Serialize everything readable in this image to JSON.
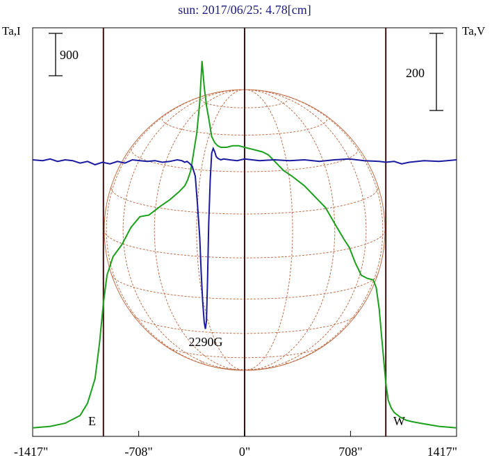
{
  "chart_data": {
    "type": "line",
    "title": "sun: 2017/06/25: 4.78[cm]",
    "ylabel_left": "Ta,I",
    "ylabel_right": "Ta,V",
    "scale_left": "900",
    "scale_right": "200",
    "x_ticks": [
      "-1417\"",
      "-708\"",
      "0\"",
      "708\"",
      "1417\""
    ],
    "x_tick_values": [
      -1417,
      -708,
      0,
      708,
      1417
    ],
    "xlim": [
      -1417,
      1417
    ],
    "limb_labels": {
      "east": "E",
      "west": "W"
    },
    "limb_positions": [
      -944,
      944
    ],
    "annotation": {
      "text": "2290G",
      "x": -250
    },
    "grid": false,
    "series": [
      {
        "color": "#1aa01a",
        "x": [
          -1417,
          -1300,
          -1200,
          -1100,
          -1050,
          -1000,
          -970,
          -944,
          -920,
          -880,
          -820,
          -760,
          -700,
          -640,
          -600,
          -560,
          -500,
          -440,
          -400,
          -380,
          -360,
          -340,
          -320,
          -300,
          -285,
          -270,
          -255,
          -240,
          -220,
          -200,
          -180,
          -160,
          -120,
          -80,
          -40,
          0,
          40,
          80,
          120,
          160,
          200,
          260,
          320,
          400,
          480,
          540,
          600,
          660,
          700,
          740,
          780,
          820,
          860,
          880,
          900,
          920,
          944,
          960,
          980,
          1000,
          1040,
          1080,
          1120,
          1200,
          1300,
          1417
        ],
        "values": [
          5,
          10,
          20,
          45,
          85,
          165,
          280,
          410,
          500,
          560,
          600,
          655,
          690,
          695,
          710,
          725,
          745,
          770,
          790,
          810,
          840,
          900,
          960,
          1060,
          1195,
          1110,
          1050,
          1010,
          950,
          930,
          920,
          915,
          915,
          920,
          920,
          915,
          910,
          905,
          900,
          890,
          870,
          840,
          820,
          790,
          750,
          720,
          670,
          620,
          590,
          540,
          500,
          490,
          485,
          460,
          390,
          280,
          150,
          95,
          70,
          55,
          40,
          30,
          25,
          18,
          10,
          5
        ]
      },
      {
        "color": "#1a1aa0",
        "x": [
          -1417,
          -1350,
          -1300,
          -1250,
          -1200,
          -1150,
          -1100,
          -1050,
          -1000,
          -950,
          -900,
          -850,
          -800,
          -750,
          -700,
          -650,
          -600,
          -550,
          -500,
          -450,
          -420,
          -400,
          -385,
          -370,
          -350,
          -330,
          -315,
          -300,
          -290,
          -280,
          -270,
          -262,
          -255,
          -248,
          -240,
          -230,
          -220,
          -210,
          -200,
          -190,
          -180,
          -160,
          -140,
          -100,
          -50,
          0,
          50,
          100,
          200,
          300,
          400,
          500,
          600,
          700,
          800,
          900,
          944,
          1000,
          1050,
          1100,
          1200,
          1300,
          1417
        ],
        "values": [
          0,
          -1,
          1,
          -2,
          0,
          -1,
          -4,
          -2,
          -6,
          -3,
          -5,
          -2,
          -4,
          0,
          -1,
          -2,
          -1,
          -3,
          -2,
          0,
          -1,
          -3,
          -2,
          -4,
          -8,
          -20,
          -55,
          -95,
          -140,
          -175,
          -200,
          -208,
          -198,
          -150,
          -80,
          -25,
          8,
          14,
          10,
          4,
          2,
          0,
          1,
          0,
          -1,
          1,
          0,
          -1,
          0,
          -1,
          0,
          -2,
          0,
          1,
          -1,
          -2,
          -3,
          -2,
          -5,
          -3,
          -1,
          -2,
          0
        ]
      }
    ],
    "ylim_green": [
      0,
      1280
    ],
    "ylim_blue": [
      -250,
      60
    ]
  }
}
